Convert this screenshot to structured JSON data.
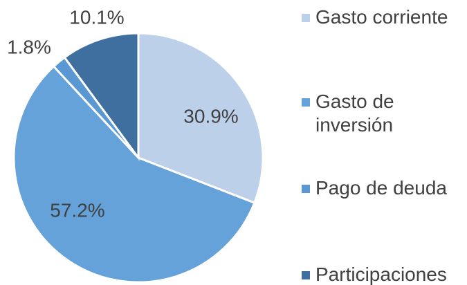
{
  "chart_data": {
    "type": "pie",
    "categories": [
      "Gasto corriente",
      "Gasto de inversión",
      "Pago de deuda",
      "Participaciones"
    ],
    "values": [
      30.9,
      57.2,
      1.8,
      10.1
    ],
    "value_labels": [
      "30.9%",
      "57.2%",
      "1.8%",
      "10.1%"
    ],
    "colors": [
      "#bdd0ea",
      "#65a2d9",
      "#5a98d3",
      "#3e6f9f"
    ],
    "legend": "right"
  }
}
